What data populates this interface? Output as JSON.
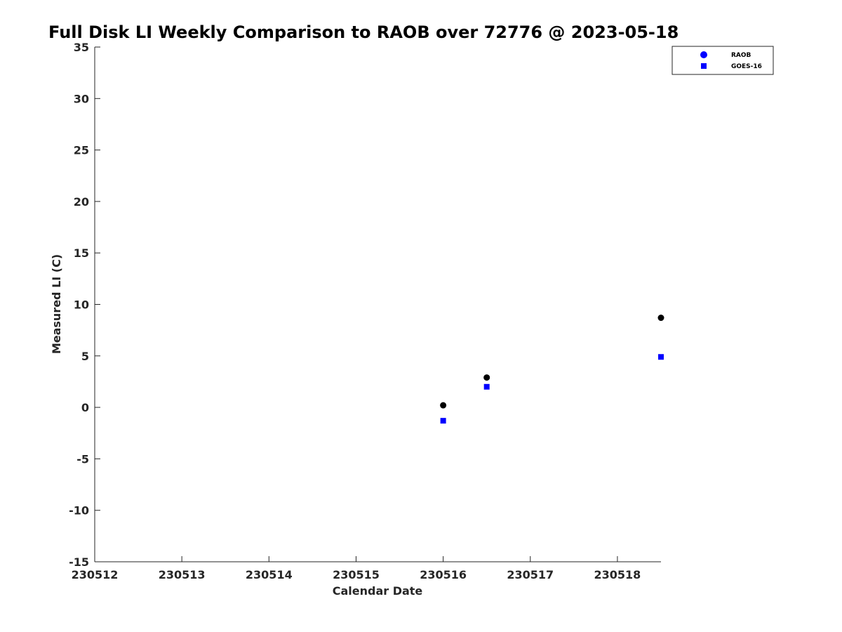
{
  "chart_data": {
    "type": "scatter",
    "title": "Full Disk LI Weekly Comparison to RAOB over 72776 @ 2023-05-18",
    "xlabel": "Calendar Date",
    "ylabel": "Measured LI (C)",
    "xlim": [
      "230512",
      "230518.5"
    ],
    "ylim": [
      -15,
      35
    ],
    "x_ticks": [
      "230512",
      "230513",
      "230514",
      "230515",
      "230516",
      "230517",
      "230518"
    ],
    "y_ticks": [
      35,
      30,
      25,
      20,
      15,
      10,
      5,
      0,
      -5,
      -10,
      -15
    ],
    "grid": false,
    "legend_position": "top-right",
    "series": [
      {
        "name": "RAOB",
        "marker": "circle",
        "color": "#000000",
        "legend_color": "#0000ff",
        "points": [
          {
            "x": "230516.0",
            "y": 0.2
          },
          {
            "x": "230516.5",
            "y": 2.9
          },
          {
            "x": "230518.5",
            "y": 8.7
          }
        ]
      },
      {
        "name": "GOES-16",
        "marker": "square",
        "color": "#0000ff",
        "points": [
          {
            "x": "230516.0",
            "y": -1.3
          },
          {
            "x": "230516.5",
            "y": 2.0
          },
          {
            "x": "230518.5",
            "y": 4.9
          }
        ]
      }
    ]
  }
}
